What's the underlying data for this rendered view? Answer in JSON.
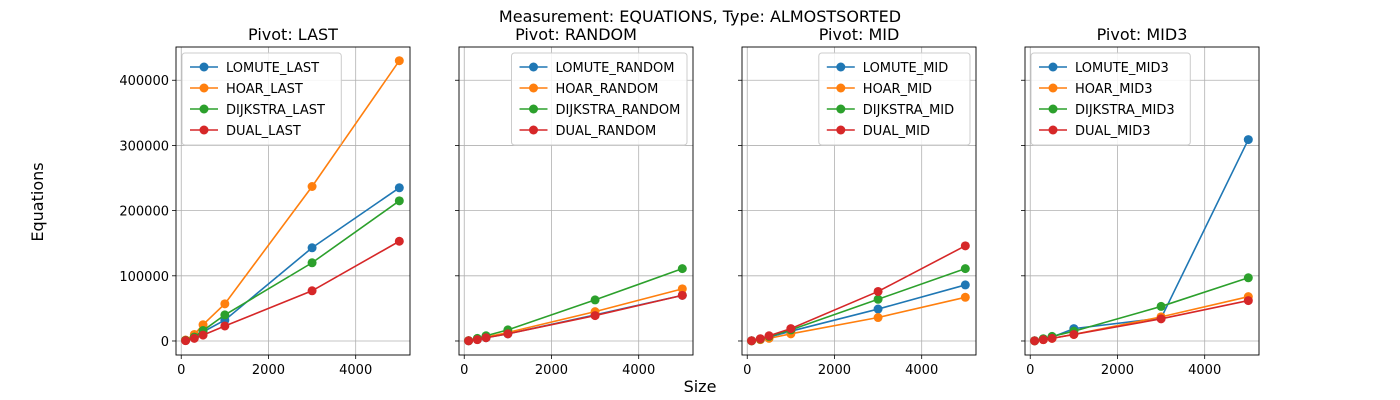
{
  "figure": {
    "suptitle": "Measurement: EQUATIONS, Type: ALMOSTSORTED",
    "xlabel": "Size",
    "ylabel": "Equations"
  },
  "colors": {
    "blue": "#1f77b4",
    "orange": "#ff7f0e",
    "green": "#2ca02c",
    "red": "#d62728",
    "grid": "#b0b0b0"
  },
  "chart_data": [
    {
      "type": "line",
      "title": "Pivot: LAST",
      "legend_position": "top-left",
      "xlim": [
        -120,
        5245
      ],
      "ylim": [
        -21500,
        451000
      ],
      "x_ticks": [
        0,
        2000,
        4000
      ],
      "x_tick_labels": [
        "0",
        "2000",
        "4000"
      ],
      "y_ticks": [
        0,
        100000,
        200000,
        300000,
        400000
      ],
      "y_tick_labels": [
        "0",
        "100000",
        "200000",
        "300000",
        "400000"
      ],
      "grid": true,
      "x": [
        100,
        300,
        500,
        1000,
        3000,
        5000
      ],
      "series": [
        {
          "name": "LOMUTE_LAST",
          "color": "blue",
          "values": [
            1000,
            6000,
            14000,
            32000,
            143000,
            235000
          ]
        },
        {
          "name": "HOAR_LAST",
          "color": "orange",
          "values": [
            1500,
            10000,
            25000,
            57000,
            237000,
            430000
          ]
        },
        {
          "name": "DIJKSTRA_LAST",
          "color": "green",
          "values": [
            1000,
            6000,
            16000,
            40000,
            120000,
            215000
          ]
        },
        {
          "name": "DUAL_LAST",
          "color": "red",
          "values": [
            500,
            4000,
            9000,
            23000,
            77000,
            153000
          ]
        }
      ]
    },
    {
      "type": "line",
      "title": "Pivot: RANDOM",
      "legend_position": "top-right",
      "xlim": [
        -120,
        5245
      ],
      "ylim": [
        -21500,
        451000
      ],
      "x_ticks": [
        0,
        2000,
        4000
      ],
      "x_tick_labels": [
        "0",
        "2000",
        "4000"
      ],
      "y_ticks": [
        0,
        100000,
        200000,
        300000,
        400000
      ],
      "y_tick_labels": [
        "",
        "",
        "",
        "",
        ""
      ],
      "grid": true,
      "x": [
        100,
        300,
        500,
        1000,
        3000,
        5000
      ],
      "series": [
        {
          "name": "LOMUTE_RANDOM",
          "color": "blue",
          "values": [
            300,
            2500,
            5000,
            11000,
            40000,
            70000
          ]
        },
        {
          "name": "HOAR_RANDOM",
          "color": "orange",
          "values": [
            400,
            3000,
            6000,
            13000,
            45000,
            80000
          ]
        },
        {
          "name": "DIJKSTRA_RANDOM",
          "color": "green",
          "values": [
            500,
            4000,
            8000,
            17000,
            63000,
            111000
          ]
        },
        {
          "name": "DUAL_RANDOM",
          "color": "red",
          "values": [
            300,
            2000,
            5000,
            11000,
            39000,
            70000
          ]
        }
      ]
    },
    {
      "type": "line",
      "title": "Pivot: MID",
      "legend_position": "top-right",
      "xlim": [
        -120,
        5245
      ],
      "ylim": [
        -21500,
        451000
      ],
      "x_ticks": [
        0,
        2000,
        4000
      ],
      "x_tick_labels": [
        "0",
        "2000",
        "4000"
      ],
      "y_ticks": [
        0,
        100000,
        200000,
        300000,
        400000
      ],
      "y_tick_labels": [
        "",
        "",
        "",
        "",
        ""
      ],
      "grid": true,
      "x": [
        100,
        300,
        500,
        1000,
        3000,
        5000
      ],
      "series": [
        {
          "name": "LOMUTE_MID",
          "color": "blue",
          "values": [
            300,
            2500,
            6000,
            15000,
            49000,
            86000
          ]
        },
        {
          "name": "HOAR_MID",
          "color": "orange",
          "values": [
            200,
            2000,
            4000,
            11000,
            36000,
            67000
          ]
        },
        {
          "name": "DIJKSTRA_MID",
          "color": "green",
          "values": [
            300,
            3000,
            7000,
            17000,
            64000,
            111000
          ]
        },
        {
          "name": "DUAL_MID",
          "color": "red",
          "values": [
            400,
            3500,
            8000,
            19000,
            76000,
            146000
          ]
        }
      ]
    },
    {
      "type": "line",
      "title": "Pivot: MID3",
      "legend_position": "top-left",
      "xlim": [
        -120,
        5245
      ],
      "ylim": [
        -21500,
        451000
      ],
      "x_ticks": [
        0,
        2000,
        4000
      ],
      "x_tick_labels": [
        "0",
        "2000",
        "4000"
      ],
      "y_ticks": [
        0,
        100000,
        200000,
        300000,
        400000
      ],
      "y_tick_labels": [
        "",
        "",
        "",
        "",
        ""
      ],
      "grid": true,
      "x": [
        100,
        300,
        500,
        1000,
        3000,
        5000
      ],
      "series": [
        {
          "name": "LOMUTE_MID3",
          "color": "blue",
          "values": [
            300,
            3000,
            6000,
            19000,
            35000,
            309000
          ]
        },
        {
          "name": "HOAR_MID3",
          "color": "orange",
          "values": [
            200,
            2000,
            4000,
            10000,
            37000,
            68000
          ]
        },
        {
          "name": "DIJKSTRA_MID3",
          "color": "green",
          "values": [
            300,
            3500,
            7000,
            15000,
            53000,
            97000
          ]
        },
        {
          "name": "DUAL_MID3",
          "color": "red",
          "values": [
            200,
            2000,
            4000,
            10000,
            34000,
            62000
          ]
        }
      ]
    }
  ]
}
